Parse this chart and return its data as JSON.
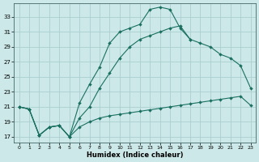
{
  "xlabel": "Humidex (Indice chaleur)",
  "bg_color": "#cce8e8",
  "grid_color": "#aacfcf",
  "line_color": "#1a7060",
  "xlim": [
    -0.5,
    23.5
  ],
  "ylim": [
    16.2,
    34.8
  ],
  "xticks": [
    0,
    1,
    2,
    3,
    4,
    5,
    6,
    7,
    8,
    9,
    10,
    11,
    12,
    13,
    14,
    15,
    16,
    17,
    18,
    19,
    20,
    21,
    22,
    23
  ],
  "yticks": [
    17,
    19,
    21,
    23,
    25,
    27,
    29,
    31,
    33
  ],
  "lines": [
    {
      "x": [
        0,
        1,
        2,
        3,
        4,
        5,
        6,
        7,
        8,
        9,
        10,
        11,
        12,
        13,
        14,
        15,
        16,
        17
      ],
      "y": [
        21,
        20.7,
        17.2,
        18.3,
        18.5,
        17.0,
        21.5,
        24.0,
        26.3,
        29.5,
        31.0,
        31.5,
        32.0,
        34.0,
        34.3,
        34.0,
        31.5,
        30.0
      ]
    },
    {
      "x": [
        0,
        1,
        2,
        3,
        4,
        5,
        6,
        7,
        8,
        9,
        10,
        11,
        12,
        13,
        14,
        15,
        16,
        17,
        18,
        19,
        20,
        21,
        22,
        23
      ],
      "y": [
        21,
        20.7,
        17.2,
        18.3,
        18.5,
        17.0,
        19.5,
        21.0,
        23.5,
        25.5,
        27.5,
        29.0,
        30.0,
        30.5,
        31.0,
        31.5,
        31.8,
        30.0,
        29.5,
        29.0,
        28.0,
        27.5,
        26.5,
        23.5
      ]
    },
    {
      "x": [
        0,
        1,
        2,
        3,
        4,
        5,
        6,
        7,
        8,
        9,
        10,
        11,
        12,
        13,
        14,
        15,
        16,
        17,
        18,
        19,
        20,
        21,
        22,
        23
      ],
      "y": [
        21,
        20.7,
        17.2,
        18.3,
        18.5,
        17.0,
        18.3,
        19.0,
        19.5,
        19.8,
        20.0,
        20.2,
        20.4,
        20.6,
        20.8,
        21.0,
        21.2,
        21.4,
        21.6,
        21.8,
        22.0,
        22.2,
        22.4,
        21.2
      ]
    }
  ]
}
